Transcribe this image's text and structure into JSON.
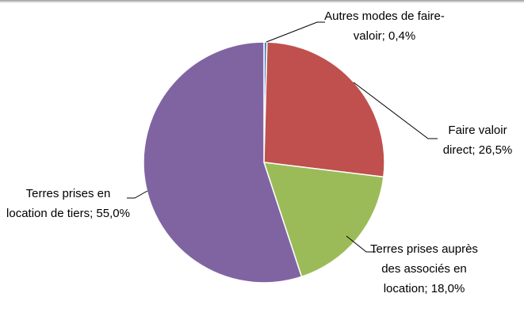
{
  "chart_data": {
    "type": "pie",
    "categories": [
      "Autres modes de faire-valoir",
      "Faire valoir direct",
      "Terres prises auprès des associés en location",
      "Terres prises en location de tiers"
    ],
    "values": [
      0.4,
      26.5,
      18.0,
      55.0
    ],
    "value_labels": [
      "0,4%",
      "26,5%",
      "18,0%",
      "55,0%"
    ],
    "label_separator": ";",
    "colors": [
      "#4f81bd",
      "#c0504d",
      "#9bbb59",
      "#8064a2"
    ]
  }
}
